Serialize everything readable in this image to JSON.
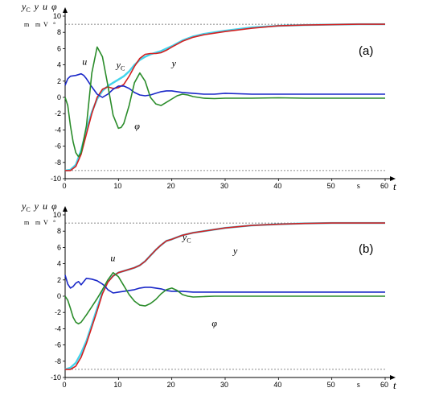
{
  "chart_data": [
    {
      "type": "line",
      "panel_label": "(a)",
      "ylabel_parts": [
        "y",
        "C",
        "y",
        "u",
        "φ"
      ],
      "units": [
        "m",
        "m",
        "V",
        "°"
      ],
      "xlabel": "t",
      "xunit": "s",
      "xlim": [
        0,
        60
      ],
      "ylim": [
        -10,
        10
      ],
      "x_ticks": [
        "0",
        "10",
        "20",
        "30",
        "40",
        "50",
        "60"
      ],
      "y_ticks": [
        "10",
        "8",
        "6",
        "4",
        "2",
        "0",
        "-2",
        "-4",
        "-6",
        "-8",
        "-10"
      ],
      "reference_lines": [
        9,
        -9
      ],
      "series": [
        {
          "key": "yC",
          "color": "#44d4ec",
          "x": [
            0,
            1,
            2,
            3,
            4,
            5,
            6,
            7,
            8,
            9,
            10,
            11,
            12,
            13,
            14,
            15,
            16,
            17,
            18,
            19,
            20,
            22,
            24,
            26,
            28,
            30,
            35,
            40,
            45,
            50,
            55,
            60
          ],
          "y": [
            -9,
            -8.9,
            -8.3,
            -6.5,
            -4,
            -1.8,
            -0.2,
            0.8,
            1.4,
            1.8,
            2.2,
            2.6,
            3.2,
            4,
            4.6,
            5,
            5.3,
            5.5,
            5.7,
            6,
            6.3,
            7,
            7.5,
            7.8,
            8,
            8.2,
            8.6,
            8.8,
            8.9,
            8.95,
            9,
            9
          ]
        },
        {
          "key": "y",
          "color": "#d42020",
          "x": [
            0,
            1,
            2,
            3,
            4,
            5,
            6,
            7,
            8,
            9,
            10,
            11,
            12,
            13,
            14,
            15,
            16,
            17,
            18,
            19,
            20,
            22,
            24,
            26,
            28,
            30,
            35,
            40,
            45,
            50,
            55,
            60
          ],
          "y": [
            -9,
            -9,
            -8.5,
            -7,
            -4.5,
            -2,
            0,
            1,
            1.3,
            1.1,
            1.2,
            1.6,
            2.6,
            3.8,
            4.8,
            5.3,
            5.4,
            5.4,
            5.5,
            5.8,
            6.2,
            6.9,
            7.4,
            7.7,
            7.9,
            8.1,
            8.5,
            8.8,
            8.9,
            8.95,
            9,
            9
          ]
        },
        {
          "key": "u",
          "color": "#1a28c8",
          "x": [
            0,
            0.5,
            1,
            2,
            3,
            3.5,
            4,
            5,
            6,
            7,
            8,
            9,
            10,
            11,
            12,
            13,
            14,
            15,
            16,
            17,
            18,
            19,
            20,
            22,
            24,
            26,
            28,
            30,
            35,
            40,
            45,
            50,
            55,
            60
          ],
          "y": [
            1.5,
            2.3,
            2.6,
            2.7,
            2.9,
            2.7,
            2.3,
            1.3,
            0.4,
            0,
            0.4,
            1,
            1.4,
            1.4,
            1.1,
            0.6,
            0.3,
            0.2,
            0.3,
            0.5,
            0.7,
            0.8,
            0.8,
            0.6,
            0.5,
            0.4,
            0.4,
            0.5,
            0.4,
            0.4,
            0.4,
            0.4,
            0.4,
            0.4
          ]
        },
        {
          "key": "phi",
          "color": "#2a8c2a",
          "x": [
            0,
            0.5,
            1,
            1.5,
            2,
            2.5,
            3,
            4,
            5,
            6,
            7,
            8,
            9,
            10,
            10.5,
            11,
            12,
            13,
            14,
            15,
            16,
            17,
            18,
            19,
            20,
            21,
            22,
            23,
            24,
            26,
            28,
            30,
            35,
            40,
            45,
            50,
            55,
            60
          ],
          "y": [
            0,
            -1,
            -3.5,
            -5.5,
            -6.8,
            -7.3,
            -6.8,
            -3.5,
            3,
            6.2,
            5,
            1.5,
            -2.2,
            -3.8,
            -3.7,
            -3.2,
            -1,
            1.8,
            3,
            2,
            0,
            -0.8,
            -1,
            -0.6,
            -0.2,
            0.2,
            0.4,
            0.3,
            0.1,
            -0.1,
            -0.15,
            -0.1,
            -0.1,
            -0.05,
            -0.1,
            -0.1,
            -0.1,
            -0.1
          ]
        }
      ],
      "annotations": [
        {
          "text": "u",
          "x": 3.2,
          "y": 4.0
        },
        {
          "text": "y",
          "x": 9.6,
          "y": 3.6,
          "sub": "C"
        },
        {
          "text": "y",
          "x": 20.0,
          "y": 3.8
        },
        {
          "text": "φ",
          "x": 13.0,
          "y": -3.9
        }
      ]
    },
    {
      "type": "line",
      "panel_label": "(b)",
      "ylabel_parts": [
        "y",
        "C",
        "y",
        "u",
        "φ"
      ],
      "units": [
        "m",
        "m",
        "V",
        "°"
      ],
      "xlabel": "t",
      "xunit": "s",
      "xlim": [
        0,
        60
      ],
      "ylim": [
        -10,
        10
      ],
      "x_ticks": [
        "0",
        "10",
        "20",
        "30",
        "40",
        "50",
        "60"
      ],
      "y_ticks": [
        "10",
        "8",
        "6",
        "4",
        "2",
        "0",
        "-2",
        "-4",
        "-6",
        "-8",
        "-10"
      ],
      "reference_lines": [
        9,
        -9
      ],
      "series": [
        {
          "key": "yC",
          "color": "#44d4ec",
          "x": [
            0,
            1,
            2,
            3,
            4,
            5,
            6,
            7,
            8,
            9,
            10,
            11,
            12,
            13,
            14,
            15,
            16,
            17,
            18,
            19,
            20,
            22,
            24,
            26,
            28,
            30,
            35,
            40,
            45,
            50,
            55,
            60
          ],
          "y": [
            -9,
            -8.8,
            -8.2,
            -7,
            -5.5,
            -3.5,
            -1.5,
            0.5,
            1.8,
            2.5,
            2.9,
            3.1,
            3.3,
            3.5,
            3.8,
            4.3,
            5,
            5.7,
            6.3,
            6.8,
            7,
            7.5,
            7.8,
            8,
            8.2,
            8.4,
            8.7,
            8.85,
            8.95,
            9,
            9,
            9
          ]
        },
        {
          "key": "y",
          "color": "#d42020",
          "x": [
            0,
            1,
            2,
            3,
            4,
            5,
            6,
            7,
            8,
            9,
            10,
            11,
            12,
            13,
            14,
            15,
            16,
            17,
            18,
            19,
            20,
            22,
            24,
            26,
            28,
            30,
            35,
            40,
            45,
            50,
            55,
            60
          ],
          "y": [
            -9,
            -9,
            -8.6,
            -7.5,
            -5.8,
            -3.8,
            -1.8,
            0.3,
            1.7,
            2.5,
            2.9,
            3.1,
            3.3,
            3.5,
            3.8,
            4.3,
            5,
            5.7,
            6.3,
            6.8,
            7,
            7.5,
            7.8,
            8,
            8.2,
            8.4,
            8.7,
            8.85,
            8.95,
            9,
            9,
            9
          ]
        },
        {
          "key": "u",
          "color": "#1a28c8",
          "x": [
            0,
            0.5,
            1,
            1.5,
            2,
            2.5,
            3,
            3.5,
            4,
            5,
            6,
            7,
            7.5,
            8,
            9,
            10,
            11,
            12,
            13,
            14,
            15,
            16,
            17,
            18,
            19,
            20,
            22,
            24,
            26,
            28,
            30,
            35,
            40,
            45,
            50,
            55,
            60
          ],
          "y": [
            2.6,
            1.5,
            1,
            1.2,
            1.6,
            1.8,
            1.4,
            1.8,
            2.2,
            2.1,
            1.9,
            1.5,
            1.2,
            0.8,
            0.4,
            0.5,
            0.6,
            0.7,
            0.8,
            1,
            1.1,
            1.1,
            1,
            0.9,
            0.7,
            0.6,
            0.6,
            0.5,
            0.5,
            0.5,
            0.5,
            0.5,
            0.5,
            0.5,
            0.5,
            0.5,
            0.5
          ]
        },
        {
          "key": "phi",
          "color": "#2a8c2a",
          "x": [
            0,
            0.5,
            1,
            1.5,
            2,
            2.5,
            3,
            4,
            5,
            6,
            7,
            8,
            9,
            10,
            11,
            12,
            13,
            14,
            15,
            16,
            17,
            18,
            19,
            20,
            21,
            22,
            23,
            24,
            26,
            28,
            30,
            35,
            40,
            45,
            50,
            55,
            60
          ],
          "y": [
            0,
            -0.5,
            -1.5,
            -2.6,
            -3.2,
            -3.4,
            -3.2,
            -2.3,
            -1.3,
            -0.3,
            0.8,
            2,
            2.9,
            2.4,
            1.3,
            0.2,
            -0.6,
            -1.1,
            -1.2,
            -0.9,
            -0.4,
            0.3,
            0.8,
            1,
            0.7,
            0.2,
            0,
            -0.1,
            -0.05,
            0,
            0,
            0,
            0,
            0,
            0,
            0,
            0
          ]
        }
      ],
      "annotations": [
        {
          "text": "u",
          "x": 8.5,
          "y": 4.3
        },
        {
          "text": "y",
          "x": 22.0,
          "y": 6.9,
          "sub": "C"
        },
        {
          "text": "y",
          "x": 31.5,
          "y": 5.2
        },
        {
          "text": "φ",
          "x": 27.5,
          "y": -3.7
        }
      ]
    }
  ]
}
